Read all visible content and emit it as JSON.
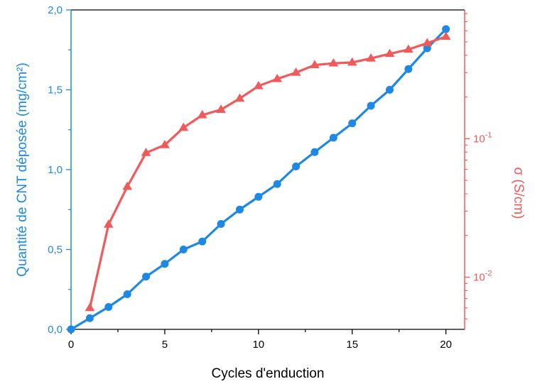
{
  "chart_data": {
    "type": "line",
    "xlabel": "Cycles d'enduction",
    "ylabel_left": "Quantité de CNT déposée (mg/cm²)",
    "ylabel_right": "σ (S/cm)",
    "xlim": [
      0,
      21
    ],
    "x_ticks": [
      0,
      5,
      10,
      15,
      20
    ],
    "x_tick_labels": [
      "0",
      "5",
      "10",
      "15",
      "20"
    ],
    "ylim_left": [
      0,
      2
    ],
    "y_left_ticks": [
      0,
      0.5,
      1.0,
      1.5,
      2.0
    ],
    "y_left_tick_labels": [
      "0,0",
      "0,5",
      "1,0",
      "1,5",
      "2,0"
    ],
    "y_right_scale": "log",
    "ylim_right": [
      0.0042,
      0.85
    ],
    "y_right_ticks": [
      0.01,
      0.1
    ],
    "y_right_tick_labels": [
      {
        "base": "10",
        "exp": "-2"
      },
      {
        "base": "10",
        "exp": "-1"
      }
    ],
    "colors": {
      "left": "#1E88E5",
      "right": "#F05A5A",
      "axis": "#000000"
    },
    "series": [
      {
        "axis": "left",
        "marker": "circle",
        "color": "#1E88E5",
        "x": [
          0,
          1,
          2,
          3,
          4,
          5,
          6,
          7,
          8,
          9,
          10,
          11,
          12,
          13,
          14,
          15,
          16,
          17,
          18,
          19,
          20
        ],
        "values": [
          0.0,
          0.07,
          0.14,
          0.22,
          0.33,
          0.41,
          0.5,
          0.55,
          0.66,
          0.75,
          0.83,
          0.91,
          1.02,
          1.11,
          1.2,
          1.29,
          1.4,
          1.5,
          1.63,
          1.76,
          1.88
        ]
      },
      {
        "axis": "right",
        "marker": "triangle",
        "color": "#F05A5A",
        "x": [
          1,
          2,
          3,
          4,
          5,
          6,
          7,
          8,
          9,
          10,
          11,
          12,
          13,
          14,
          15,
          16,
          17,
          18,
          19,
          20
        ],
        "values": [
          0.006,
          0.024,
          0.045,
          0.079,
          0.09,
          0.12,
          0.148,
          0.162,
          0.195,
          0.24,
          0.27,
          0.3,
          0.34,
          0.35,
          0.355,
          0.38,
          0.41,
          0.44,
          0.49,
          0.545
        ]
      }
    ]
  }
}
